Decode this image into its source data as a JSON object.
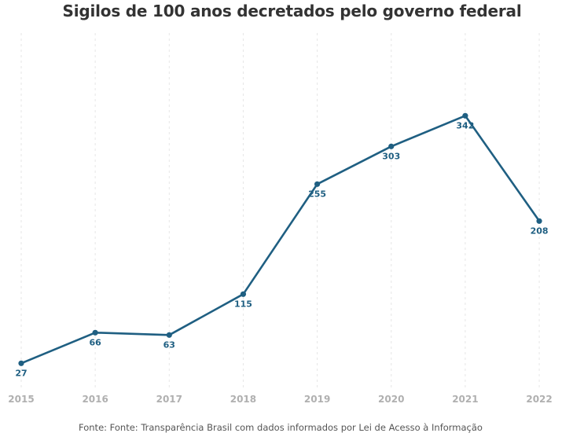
{
  "chart_data": {
    "type": "line",
    "title": "Sigilos de 100 anos decretados pelo governo federal",
    "source": "Fonte: Fonte: Transparência Brasil com dados informados por Lei de Acesso à Informação",
    "x": [
      "2015",
      "2016",
      "2017",
      "2018",
      "2019",
      "2020",
      "2021",
      "2022"
    ],
    "series": [
      {
        "values": [
          27,
          66,
          63,
          115,
          255,
          303,
          342,
          208
        ],
        "color": "#1f5f82"
      }
    ],
    "ylim": [
      0,
      380
    ],
    "grid": "vertical-dashed",
    "legend": "none",
    "xlabel": "",
    "ylabel": ""
  }
}
